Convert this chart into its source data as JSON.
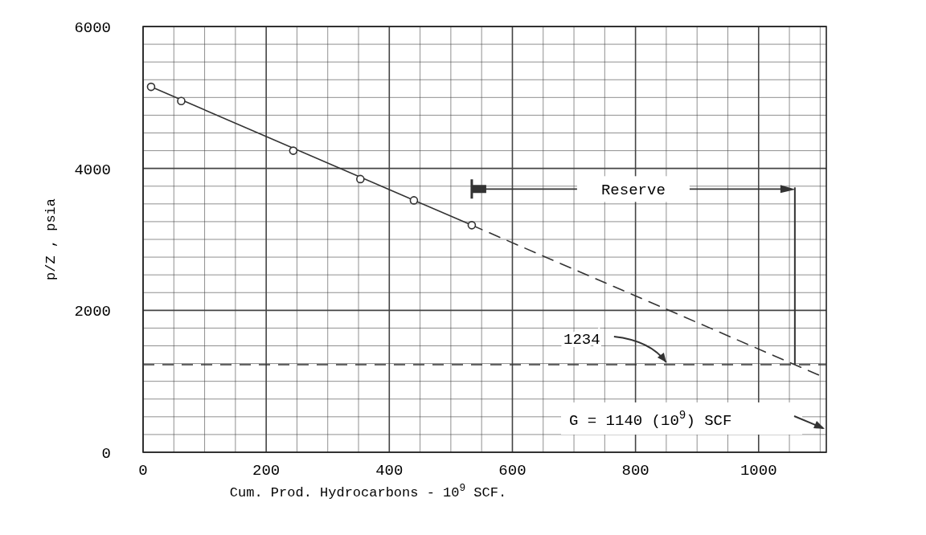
{
  "chart_data": {
    "type": "scatter",
    "xlabel": "Cum. Prod. Hydrocarbons  -  10$^{9}$ SCF.",
    "ylabel": "p/Z , psia",
    "xlim": [
      0,
      1110
    ],
    "ylim": [
      0,
      6000
    ],
    "xticks": [
      0,
      {
        "value": 50,
        "label": null
      },
      {
        "value": 100,
        "label": null
      },
      {
        "value": 150,
        "label": null
      },
      200,
      {
        "value": 250,
        "label": null
      },
      {
        "value": 300,
        "label": null
      },
      {
        "value": 350,
        "label": null
      },
      400,
      {
        "value": 450,
        "label": null
      },
      {
        "value": 500,
        "label": null
      },
      {
        "value": 550,
        "label": null
      },
      600,
      {
        "value": 650,
        "label": null
      },
      {
        "value": 700,
        "label": null
      },
      {
        "value": 750,
        "label": null
      },
      800,
      {
        "value": 850,
        "label": null
      },
      {
        "value": 900,
        "label": null
      },
      {
        "value": 950,
        "label": null
      },
      1000,
      {
        "value": 1050,
        "label": null
      },
      {
        "value": 1100,
        "label": null
      }
    ],
    "yticks": [
      0,
      {
        "value": 250,
        "label": null
      },
      {
        "value": 500,
        "label": null
      },
      {
        "value": 750,
        "label": null
      },
      {
        "value": 1000,
        "label": null
      },
      {
        "value": 1250,
        "label": null
      },
      {
        "value": 1500,
        "label": null
      },
      {
        "value": 1750,
        "label": null
      },
      2000,
      {
        "value": 2250,
        "label": null
      },
      {
        "value": 2500,
        "label": null
      },
      {
        "value": 2750,
        "label": null
      },
      {
        "value": 3000,
        "label": null
      },
      {
        "value": 3250,
        "label": null
      },
      {
        "value": 3500,
        "label": null
      },
      {
        "value": 3750,
        "label": null
      },
      4000,
      {
        "value": 4250,
        "label": null
      },
      {
        "value": 4500,
        "label": null
      },
      {
        "value": 4750,
        "label": null
      },
      {
        "value": 5000,
        "label": null
      },
      {
        "value": 5250,
        "label": null
      },
      {
        "value": 5500,
        "label": null
      },
      {
        "value": 5750,
        "label": null
      },
      6000
    ],
    "grid": true,
    "marker": "circle",
    "series": [
      {
        "type": "line",
        "color": "#333333",
        "line_style": "solid",
        "marker": "none",
        "x": [
          13,
          534
        ],
        "values": [
          5150,
          3200
        ]
      },
      {
        "type": "line",
        "color": "#333333",
        "line_style": "dashed",
        "marker": "none",
        "x": [
          534,
          1100
        ],
        "values": [
          3200,
          1080
        ]
      },
      {
        "color": "#333333",
        "x": [
          13,
          62,
          244,
          353,
          440,
          534
        ],
        "values": [
          5150,
          4950,
          4250,
          3850,
          3550,
          3200
        ]
      }
    ],
    "ref_lines": [
      {
        "axis": "y",
        "value": 1234,
        "label": "1234",
        "color": "#333333",
        "line_style": "dashed"
      }
    ],
    "annotations": [
      "Reserve",
      "G = 1140 (10$^{9}$) SCF"
    ]
  }
}
